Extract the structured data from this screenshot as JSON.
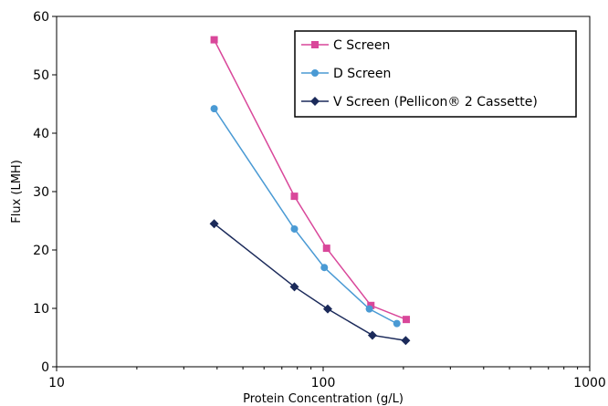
{
  "chart_data": {
    "type": "line",
    "title": "",
    "xlabel": "Protein Concentration (g/L)",
    "ylabel": "Flux (LMH)",
    "x_scale": "log",
    "xlim": [
      10,
      1000
    ],
    "ylim": [
      0,
      60
    ],
    "x_ticks": [
      10,
      100,
      1000
    ],
    "y_ticks": [
      0,
      10,
      20,
      30,
      40,
      50,
      60
    ],
    "grid": false,
    "legend_position": "top-right",
    "series": [
      {
        "name": "C Screen",
        "color": "#d9479a",
        "marker": "square",
        "x": [
          39,
          78,
          103,
          151,
          205
        ],
        "y": [
          56.0,
          29.2,
          20.3,
          10.5,
          8.1
        ]
      },
      {
        "name": "D Screen",
        "color": "#4a9ad4",
        "marker": "circle",
        "x": [
          39,
          78,
          101,
          149,
          189
        ],
        "y": [
          44.2,
          23.6,
          17.0,
          9.9,
          7.4
        ]
      },
      {
        "name": "V Screen (Pellicon® 2 Cassette)",
        "color": "#1b2a5a",
        "marker": "diamond",
        "x": [
          39,
          78,
          104,
          153,
          204
        ],
        "y": [
          24.5,
          13.7,
          9.9,
          5.4,
          4.5
        ]
      }
    ]
  }
}
